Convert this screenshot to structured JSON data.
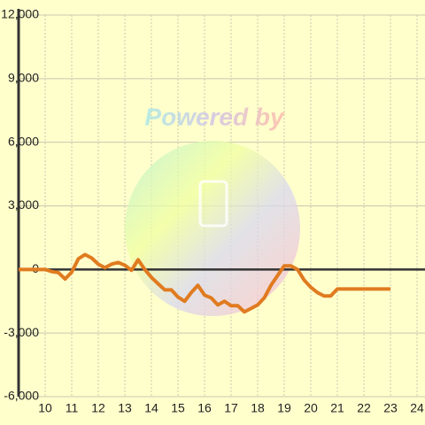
{
  "chart_data": {
    "type": "line",
    "watermark": "Powered by",
    "x": [
      9,
      9.25,
      9.5,
      9.75,
      10,
      10.25,
      10.5,
      10.75,
      11,
      11.25,
      11.5,
      11.75,
      12,
      12.25,
      12.5,
      12.75,
      13,
      13.25,
      13.5,
      13.75,
      14,
      14.25,
      14.5,
      14.75,
      15,
      15.25,
      15.5,
      15.75,
      16,
      16.25,
      16.5,
      16.75,
      17,
      17.25,
      17.5,
      17.75,
      18,
      18.25,
      18.5,
      18.75,
      19,
      19.25,
      19.5,
      19.75,
      20,
      20.25,
      20.5,
      20.75,
      21,
      21.25,
      21.5,
      21.75,
      22,
      22.25,
      22.5,
      22.75,
      23
    ],
    "series": [
      {
        "color": "#e07b20",
        "values": [
          0,
          0,
          0,
          0,
          0,
          -100,
          -150,
          -450,
          -125,
          500,
          700,
          540,
          250,
          80,
          250,
          330,
          200,
          -40,
          460,
          0,
          -375,
          -670,
          -960,
          -960,
          -1300,
          -1500,
          -1090,
          -750,
          -1210,
          -1340,
          -1670,
          -1500,
          -1710,
          -1710,
          -2000,
          -1840,
          -1670,
          -1340,
          -750,
          -290,
          170,
          170,
          0,
          -500,
          -840,
          -1090,
          -1250,
          -1250,
          -920,
          -920,
          -920,
          -920,
          -920,
          -920,
          -920,
          -920,
          -920
        ]
      }
    ],
    "xlim": [
      9,
      24.3
    ],
    "xticks": [
      10,
      11,
      12,
      13,
      14,
      15,
      16,
      17,
      18,
      19,
      20,
      21,
      22,
      23,
      24
    ],
    "ylim": [
      -6000,
      12000
    ],
    "yticks": [
      {
        "value": -6000,
        "label": "-6,000"
      },
      {
        "value": -3000,
        "label": "-3,000"
      },
      0,
      {
        "value": 3000,
        "label": "3,000"
      },
      {
        "value": 6000,
        "label": "6,000"
      },
      {
        "value": 9000,
        "label": "9,000"
      },
      {
        "value": 12000,
        "label": "12,000"
      }
    ],
    "grid": true
  }
}
